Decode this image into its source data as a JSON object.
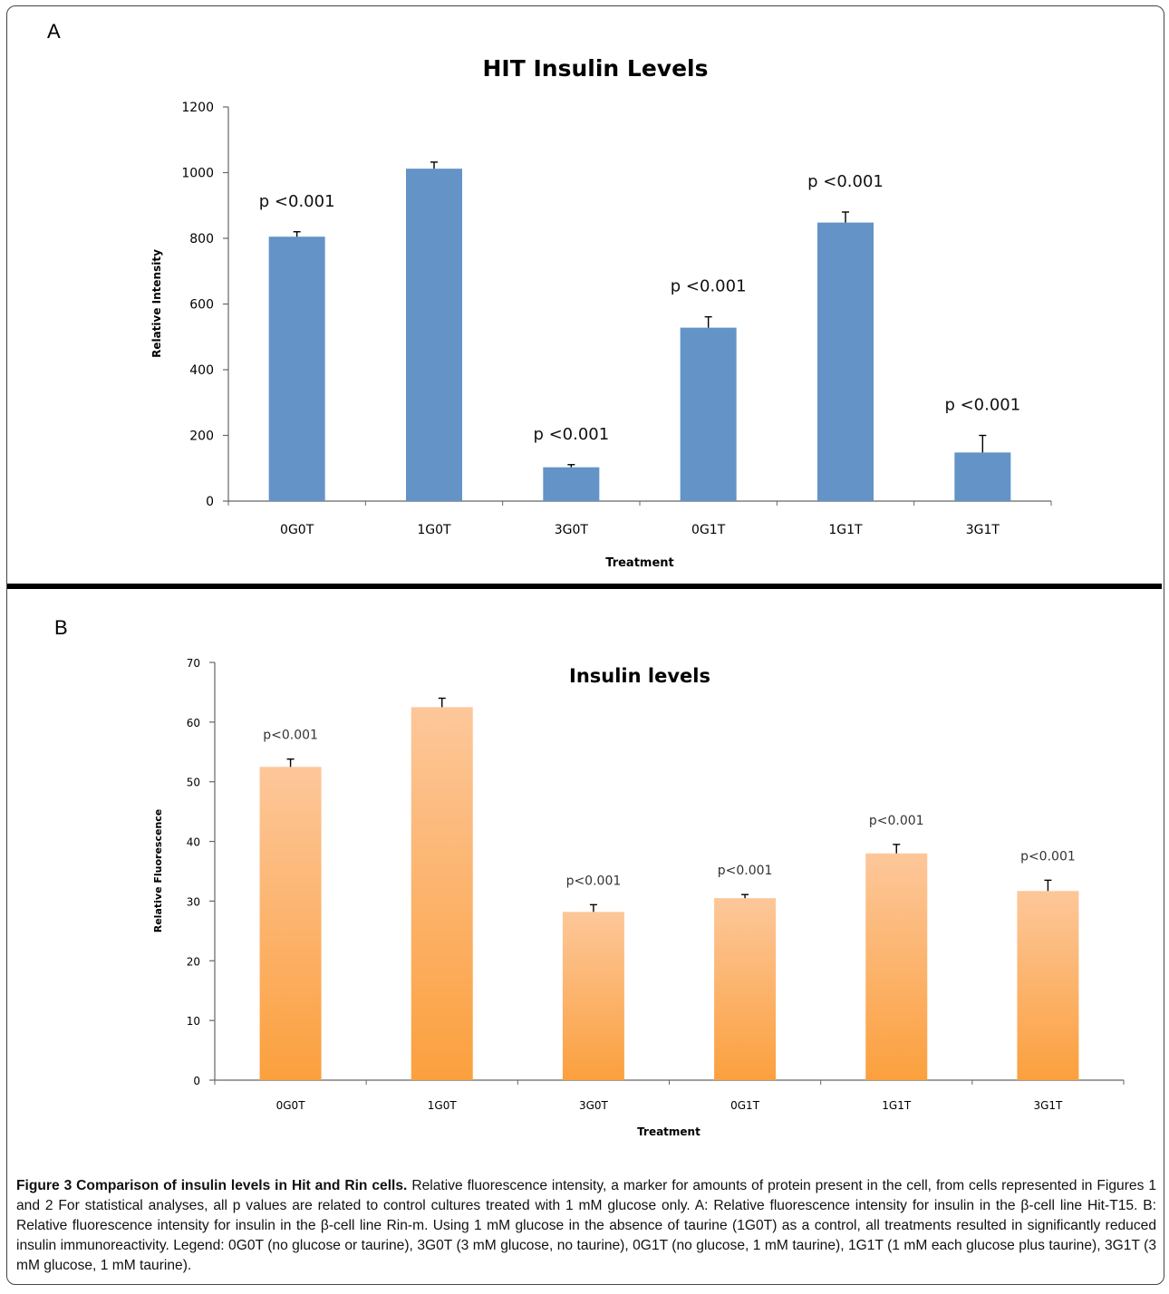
{
  "panels": {
    "a_letter": "A",
    "b_letter": "B"
  },
  "chart_data": [
    {
      "type": "bar",
      "title": "HIT Insulin Levels",
      "xlabel": "Treatment",
      "ylabel": "Relative Intensity",
      "categories": [
        "0G0T",
        "1G0T",
        "3G0T",
        "0G1T",
        "1G1T",
        "3G1T"
      ],
      "values": [
        805,
        1012,
        103,
        528,
        848,
        148
      ],
      "error": [
        15,
        20,
        8,
        33,
        32,
        52
      ],
      "annotations": [
        "p <0.001",
        "",
        "p <0.001",
        "p <0.001",
        "p <0.001",
        "p <0.001"
      ],
      "ylim": [
        0,
        1200
      ],
      "yticks": [
        0,
        200,
        400,
        600,
        800,
        1000,
        1200
      ],
      "grid": false,
      "color": "#6393c7"
    },
    {
      "type": "bar",
      "title": "Insulin levels",
      "xlabel": "Treatment",
      "ylabel": "Relative Fluorescence",
      "categories": [
        "0G0T",
        "1G0T",
        "3G0T",
        "0G1T",
        "1G1T",
        "3G1T"
      ],
      "values": [
        52.5,
        62.5,
        28.2,
        30.5,
        38.0,
        31.7
      ],
      "error": [
        1.3,
        1.5,
        1.2,
        0.6,
        1.5,
        1.8
      ],
      "annotations": [
        "p<0.001",
        "",
        "p<0.001",
        "p<0.001",
        "p<0.001",
        "p<0.001"
      ],
      "ylim": [
        0,
        70
      ],
      "yticks": [
        0,
        10,
        20,
        30,
        40,
        50,
        60,
        70
      ],
      "grid": false,
      "color_top": "#fdc79a",
      "color_bottom": "#fba03e"
    }
  ],
  "caption": {
    "title": "Figure 3 Comparison of insulin levels in Hit and Rin cells.",
    "body": "Relative fluorescence intensity, a marker for amounts of protein present in the cell, from cells represented in Figures 1 and 2 For statistical analyses, all p values are related to control cultures treated with 1 mM glucose only. A: Relative fluorescence intensity for insulin in the β-cell line Hit-T15. B: Relative fluorescence intensity for insulin in the β-cell line Rin-m. Using 1 mM glucose in the absence of taurine (1G0T) as a control, all treatments resulted in significantly reduced insulin immunoreactivity. Legend: 0G0T (no glucose or taurine), 3G0T (3 mM glucose, no taurine), 0G1T (no glucose, 1 mM taurine), 1G1T (1 mM each glucose plus taurine), 3G1T (3 mM glucose, 1 mM taurine)."
  }
}
